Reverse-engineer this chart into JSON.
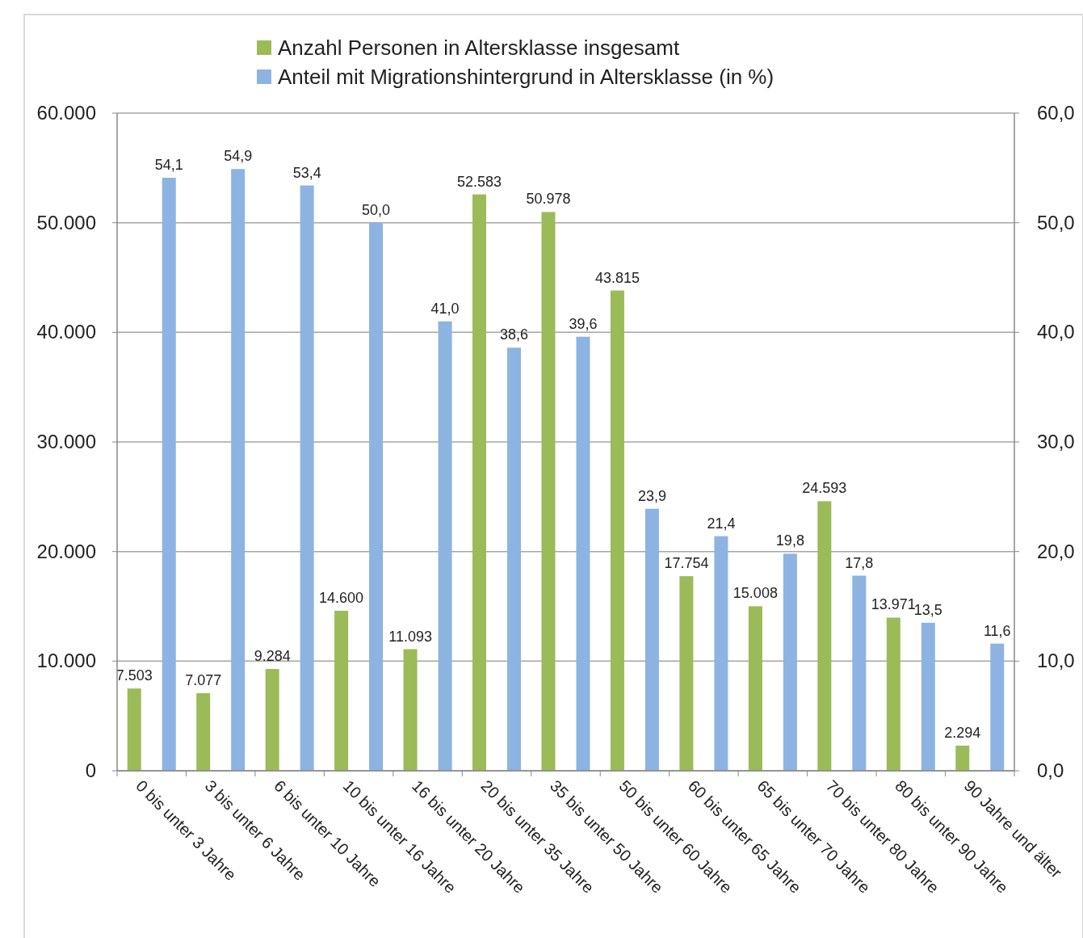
{
  "chart_data": {
    "type": "bar",
    "categories": [
      "0 bis unter 3 Jahre",
      "3 bis unter 6 Jahre",
      "6 bis unter 10 Jahre",
      "10 bis unter 16 Jahre",
      "16 bis unter 20 Jahre",
      "20 bis unter 35 Jahre",
      "35 bis unter 50 Jahre",
      "50 bis unter 60 Jahre",
      "60 bis unter 65 Jahre",
      "65 bis unter 70 Jahre",
      "70 bis unter 80 Jahre",
      "80 bis unter 90 Jahre",
      "90 Jahre und älter"
    ],
    "series": [
      {
        "name": "Anzahl Personen in Altersklasse insgesamt",
        "color": "#9bbb59",
        "values": [
          7503,
          7077,
          9284,
          14600,
          11093,
          52583,
          50978,
          43815,
          17754,
          15008,
          24593,
          13971,
          2294
        ],
        "value_labels": [
          "7.503",
          "7.077",
          "9.284",
          "14.600",
          "11.093",
          "52.583",
          "50.978",
          "43.815",
          "17.754",
          "15.008",
          "24.593",
          "13.971",
          "2.294"
        ]
      },
      {
        "name": "Anteil mit Migrationshintergrund in Altersklasse (in %)",
        "color": "#8db3e2",
        "axis": "y2",
        "values": [
          54.1,
          54.9,
          53.4,
          50.0,
          41.0,
          38.6,
          39.6,
          23.9,
          21.4,
          19.8,
          17.8,
          13.5,
          11.6
        ],
        "value_labels": [
          "54,1",
          "54,9",
          "53,4",
          "50,0",
          "41,0",
          "38,6",
          "39,6",
          "23,9",
          "21,4",
          "19,8",
          "17,8",
          "13,5",
          "11,6"
        ]
      }
    ],
    "ylim": [
      0,
      60000
    ],
    "yticks": [
      {
        "value": 0,
        "label": "0"
      },
      {
        "value": 10000,
        "label": "10.000"
      },
      {
        "value": 20000,
        "label": "20.000"
      },
      {
        "value": 30000,
        "label": "30.000"
      },
      {
        "value": 40000,
        "label": "40.000"
      },
      {
        "value": 50000,
        "label": "50.000"
      },
      {
        "value": 60000,
        "label": "60.000"
      }
    ],
    "y2lim": [
      0,
      60
    ],
    "y2ticks": [
      {
        "value": 0,
        "label": "0,0"
      },
      {
        "value": 10,
        "label": "10,0"
      },
      {
        "value": 20,
        "label": "20,0"
      },
      {
        "value": 30,
        "label": "30,0"
      },
      {
        "value": 40,
        "label": "40,0"
      },
      {
        "value": 50,
        "label": "50,0"
      },
      {
        "value": 60,
        "label": "60,0"
      }
    ],
    "grid": "y",
    "legend": "top"
  }
}
